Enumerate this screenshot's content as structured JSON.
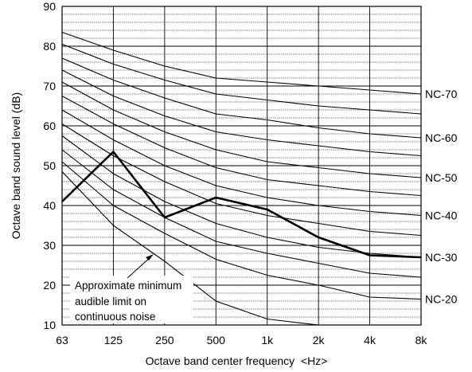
{
  "chart_data": {
    "type": "line",
    "title": "",
    "xlabel": "Octave band center frequency  <Hz>",
    "ylabel": "Octave band sound level (dB)",
    "categories": [
      "63",
      "125",
      "250",
      "500",
      "1k",
      "2k",
      "4k",
      "8k"
    ],
    "ylim": [
      10,
      90
    ],
    "yticks": [
      10,
      20,
      30,
      40,
      50,
      60,
      70,
      80,
      90
    ],
    "grid": true,
    "series": [
      {
        "name": "NC-70",
        "values": [
          83.5,
          79,
          75,
          72,
          71,
          70,
          69,
          68
        ]
      },
      {
        "values": [
          80.5,
          75.5,
          71.5,
          68,
          66.5,
          65,
          64,
          63
        ]
      },
      {
        "name": "NC-60",
        "values": [
          77,
          71.5,
          67,
          63,
          61.5,
          59.5,
          58,
          57
        ]
      },
      {
        "values": [
          74,
          67.5,
          62.5,
          58.5,
          56.5,
          55,
          53.5,
          52.5
        ]
      },
      {
        "name": "NC-50",
        "values": [
          71,
          64,
          58.5,
          54,
          51,
          49.5,
          48,
          47
        ]
      },
      {
        "values": [
          67.5,
          60.5,
          54.5,
          49.5,
          46.5,
          45,
          43.5,
          42.5
        ]
      },
      {
        "name": "NC-40",
        "values": [
          64,
          56.5,
          50,
          45,
          42,
          40,
          38.5,
          37.5
        ]
      },
      {
        "values": [
          60.5,
          52.5,
          46,
          40.5,
          37.5,
          35.5,
          33.5,
          32.5
        ]
      },
      {
        "name": "NC-30",
        "values": [
          57.5,
          48,
          41,
          35.5,
          32,
          29.5,
          28,
          27
        ]
      },
      {
        "values": [
          54,
          44,
          37,
          31,
          28,
          25.5,
          23,
          22
        ]
      },
      {
        "name": "NC-20",
        "values": [
          51,
          40,
          33,
          26.5,
          22.5,
          20,
          17,
          16.5
        ]
      }
    ],
    "measured": {
      "values": [
        41,
        53.5,
        37,
        42,
        39,
        32,
        27.5,
        27
      ]
    },
    "min_audible": {
      "values": [
        48.5,
        35,
        26,
        16,
        11.5,
        10
      ],
      "points": 6
    },
    "annotation": {
      "lines": [
        "Approximate minimum",
        "audible limit on",
        "continuous noise"
      ]
    }
  }
}
